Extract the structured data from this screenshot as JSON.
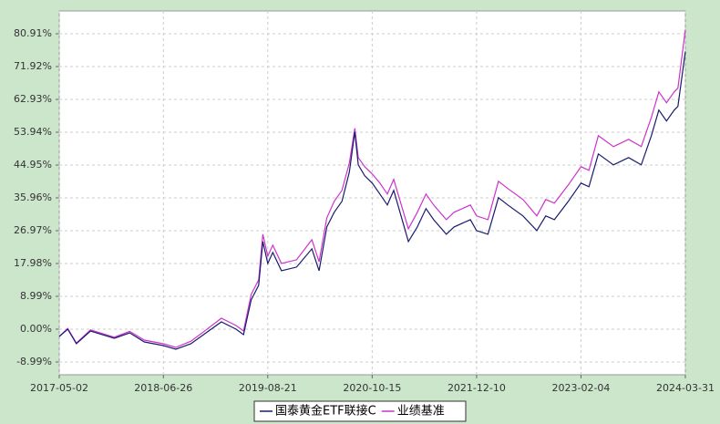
{
  "chart_data": {
    "type": "line",
    "x": [
      "2017-05-02",
      "2017-06-05",
      "2017-07-10",
      "2017-09-05",
      "2017-12-10",
      "2018-02-10",
      "2018-04-10",
      "2018-06-26",
      "2018-08-15",
      "2018-10-15",
      "2018-12-15",
      "2019-02-15",
      "2019-04-15",
      "2019-05-15",
      "2019-06-15",
      "2019-07-15",
      "2019-08-01",
      "2019-08-21",
      "2019-09-10",
      "2019-10-15",
      "2019-12-15",
      "2020-02-15",
      "2020-03-15",
      "2020-04-15",
      "2020-05-15",
      "2020-06-15",
      "2020-07-15",
      "2020-08-06",
      "2020-08-20",
      "2020-09-15",
      "2020-10-15",
      "2020-11-15",
      "2020-12-15",
      "2021-01-10",
      "2021-03-10",
      "2021-04-15",
      "2021-05-20",
      "2021-06-20",
      "2021-08-10",
      "2021-09-10",
      "2021-11-15",
      "2021-12-10",
      "2022-01-25",
      "2022-03-08",
      "2022-04-15",
      "2022-06-15",
      "2022-08-10",
      "2022-09-15",
      "2022-10-20",
      "2022-12-15",
      "2023-02-04",
      "2023-03-08",
      "2023-04-15",
      "2023-06-15",
      "2023-08-15",
      "2023-10-05",
      "2023-11-15",
      "2023-12-15",
      "2024-01-15",
      "2024-02-15",
      "2024-03-01",
      "2024-03-31"
    ],
    "series": [
      {
        "name": "国泰黄金ETF联接C",
        "color": "#1a1a6e",
        "values": [
          -2,
          0,
          -4,
          -0.5,
          -2.5,
          -1,
          -3.5,
          -4.5,
          -5.5,
          -4,
          -1,
          2,
          0,
          -1.5,
          8,
          12,
          24,
          18,
          21,
          16,
          17,
          22,
          16,
          28,
          32,
          35,
          43,
          54,
          45,
          42,
          40,
          37,
          34,
          38,
          24,
          28,
          33,
          30,
          26,
          28,
          30,
          27,
          26,
          36,
          34,
          31,
          27,
          31,
          30,
          35,
          40,
          39,
          48,
          45,
          47,
          45,
          53,
          60,
          57,
          60,
          61,
          76
        ]
      },
      {
        "name": "业绩基准",
        "color": "#cc33cc",
        "values": [
          -2,
          0.2,
          -3.8,
          -0.2,
          -2.2,
          -0.6,
          -3,
          -4,
          -5,
          -3.3,
          -0.2,
          3,
          1,
          -0.5,
          9.5,
          13.5,
          26,
          20,
          23,
          18,
          19,
          24.5,
          18.5,
          30.5,
          35,
          38,
          45.5,
          55,
          47,
          44.5,
          42.5,
          40,
          37,
          41,
          27.5,
          32,
          37,
          34,
          30,
          32,
          34,
          31,
          30,
          40.5,
          38.5,
          35.5,
          31,
          35.5,
          34.5,
          39.5,
          44.5,
          43.5,
          53,
          50,
          52,
          50,
          58,
          65,
          62,
          65,
          66,
          82
        ]
      }
    ],
    "xlim": [
      "2017-05-02",
      "2024-03-31"
    ],
    "xticks": [
      "2017-05-02",
      "2018-06-26",
      "2019-08-21",
      "2020-10-15",
      "2021-12-10",
      "2023-02-04",
      "2024-03-31"
    ],
    "ylim": [
      -12.49,
      87.15
    ],
    "yticks": [
      {
        "value": -8.99,
        "label": "-8.99%"
      },
      {
        "value": 0,
        "label": "0.00%"
      },
      {
        "value": 8.99,
        "label": "8.99%"
      },
      {
        "value": 17.98,
        "label": "17.98%"
      },
      {
        "value": 26.97,
        "label": "26.97%"
      },
      {
        "value": 35.96,
        "label": "35.96%"
      },
      {
        "value": 44.95,
        "label": "44.95%"
      },
      {
        "value": 53.94,
        "label": "53.94%"
      },
      {
        "value": 62.93,
        "label": "62.93%"
      },
      {
        "value": 71.92,
        "label": "71.92%"
      },
      {
        "value": 80.91,
        "label": "80.91%"
      }
    ],
    "grid": true
  }
}
